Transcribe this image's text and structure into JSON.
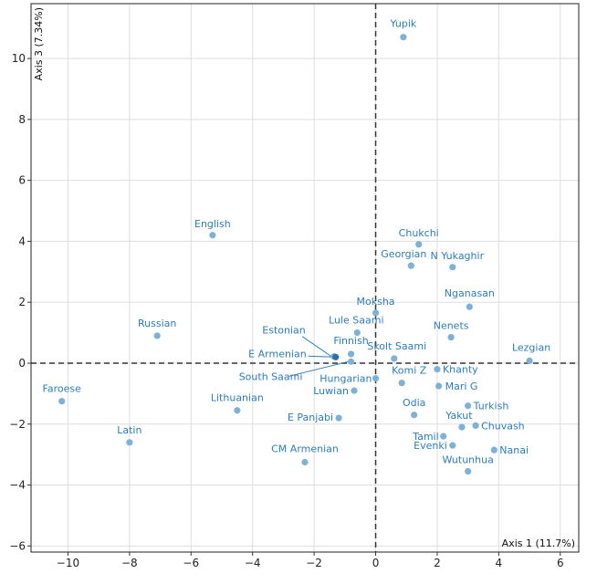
{
  "chart_data": {
    "type": "scatter",
    "xlabel": "Axis 1 (11.7%)",
    "ylabel": "Axis 3 (7.34%)",
    "xlim": [
      -11.2,
      6.6
    ],
    "ylim": [
      -6.2,
      11.8
    ],
    "xticks": [
      -10,
      -8,
      -6,
      -4,
      -2,
      0,
      2,
      4,
      6
    ],
    "yticks": [
      -6,
      -4,
      -2,
      0,
      2,
      4,
      6,
      8,
      10
    ],
    "xtick_labels": [
      "−10",
      "−8",
      "−6",
      "−4",
      "−2",
      "0",
      "2",
      "4",
      "6"
    ],
    "ytick_labels": [
      "−6",
      "−4",
      "−2",
      "0",
      "2",
      "4",
      "6",
      "8",
      "10"
    ],
    "grid": true,
    "zero_lines": "dashed",
    "point_color": "#7fb0d5",
    "label_color": "#2f7bb6",
    "points": [
      {
        "label": "Yupik",
        "x": 0.9,
        "y": 10.7
      },
      {
        "label": "English",
        "x": -5.3,
        "y": 4.2
      },
      {
        "label": "Chukchi",
        "x": 1.4,
        "y": 3.9
      },
      {
        "label": "Georgian",
        "x": 1.15,
        "y": 3.2
      },
      {
        "label": "N Yukaghir",
        "x": 2.5,
        "y": 3.15
      },
      {
        "label": "Nganasan",
        "x": 3.05,
        "y": 1.85
      },
      {
        "label": "Moksha",
        "x": 0.0,
        "y": 1.65
      },
      {
        "label": "Lule Saami",
        "x": -0.6,
        "y": 1.0
      },
      {
        "label": "Russian",
        "x": -7.1,
        "y": 0.9
      },
      {
        "label": "Nenets",
        "x": 2.45,
        "y": 0.85
      },
      {
        "label": "Estonian",
        "x": -1.35,
        "y": 0.22
      },
      {
        "label": "Finnish",
        "x": -0.8,
        "y": 0.3
      },
      {
        "label": "E Armenian",
        "x": -1.3,
        "y": 0.2
      },
      {
        "label": "South Saami",
        "x": -0.8,
        "y": 0.05
      },
      {
        "label": "Skolt Saami",
        "x": 0.6,
        "y": 0.15
      },
      {
        "label": "Lezgian",
        "x": 5.0,
        "y": 0.08
      },
      {
        "label": "Komi Z",
        "x": 0.85,
        "y": -0.65
      },
      {
        "label": "Khanty",
        "x": 2.0,
        "y": -0.2
      },
      {
        "label": "Hungarian",
        "x": 0.0,
        "y": -0.5
      },
      {
        "label": "Mari G",
        "x": 2.05,
        "y": -0.75
      },
      {
        "label": "Luwian",
        "x": -0.7,
        "y": -0.9
      },
      {
        "label": "Faroese",
        "x": -10.2,
        "y": -1.25
      },
      {
        "label": "Lithuanian",
        "x": -4.5,
        "y": -1.55
      },
      {
        "label": "Turkish",
        "x": 3.0,
        "y": -1.4
      },
      {
        "label": "Odia",
        "x": 1.25,
        "y": -1.7
      },
      {
        "label": "E Panjabi",
        "x": -1.2,
        "y": -1.8
      },
      {
        "label": "Yakut",
        "x": 2.8,
        "y": -2.1
      },
      {
        "label": "Chuvash",
        "x": 3.25,
        "y": -2.05
      },
      {
        "label": "Tamil",
        "x": 2.2,
        "y": -2.4
      },
      {
        "label": "Latin",
        "x": -8.0,
        "y": -2.6
      },
      {
        "label": "Evenki",
        "x": 2.5,
        "y": -2.7
      },
      {
        "label": "Nanai",
        "x": 3.85,
        "y": -2.85
      },
      {
        "label": "CM Armenian",
        "x": -2.3,
        "y": -3.25
      },
      {
        "label": "Wutunhua",
        "x": 3.0,
        "y": -3.55
      }
    ]
  }
}
